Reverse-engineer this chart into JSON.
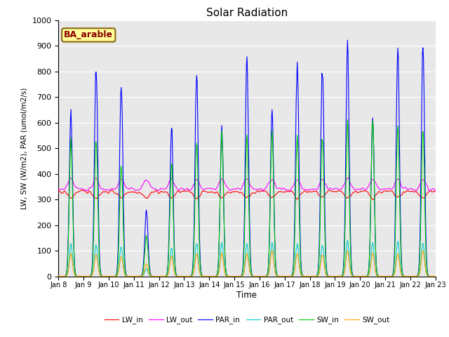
{
  "title": "Solar Radiation",
  "ylabel": "LW, SW (W/m2), PAR (umol/m2/s)",
  "xlabel": "Time",
  "annotation": "BA_arable",
  "annotation_color": "#8B0000",
  "annotation_bg": "#FFFF99",
  "annotation_border": "#8B6914",
  "ylim": [
    0,
    1000
  ],
  "yticks": [
    0,
    100,
    200,
    300,
    400,
    500,
    600,
    700,
    800,
    900,
    1000
  ],
  "xtick_labels": [
    "Jan 8",
    "Jan 9",
    "Jan 10",
    "Jan 11",
    "Jan 12",
    "Jan 13",
    "Jan 14",
    "Jan 15",
    "Jan 16",
    "Jan 17",
    "Jan 18",
    "Jan 19",
    "Jan 20",
    "Jan 21",
    "Jan 22",
    "Jan 23"
  ],
  "series": {
    "LW_in": {
      "color": "#FF0000",
      "lw": 0.8
    },
    "LW_out": {
      "color": "#FF00FF",
      "lw": 0.8
    },
    "PAR_in": {
      "color": "#0000FF",
      "lw": 0.8
    },
    "PAR_out": {
      "color": "#00CCCC",
      "lw": 0.8
    },
    "SW_in": {
      "color": "#00CC00",
      "lw": 0.8
    },
    "SW_out": {
      "color": "#FFA500",
      "lw": 0.8
    }
  },
  "background_color": "#E8E8E8",
  "grid_color": "#FFFFFF",
  "fig_bg": "#FFFFFF",
  "par_in_peaks": [
    660,
    850,
    770,
    260,
    580,
    800,
    580,
    870,
    640,
    850,
    860,
    920,
    610,
    910,
    900
  ],
  "sw_in_peaks": [
    550,
    560,
    450,
    160,
    440,
    530,
    560,
    560,
    560,
    560,
    580,
    610,
    600,
    600,
    570
  ],
  "sw_out_peaks": [
    90,
    90,
    80,
    50,
    80,
    90,
    90,
    90,
    100,
    90,
    90,
    100,
    90,
    90,
    100
  ],
  "par_out_peaks": [
    130,
    130,
    120,
    30,
    110,
    130,
    130,
    130,
    130,
    130,
    130,
    140,
    130,
    140,
    130
  ],
  "lw_in_base": 330,
  "lw_out_base": 340
}
